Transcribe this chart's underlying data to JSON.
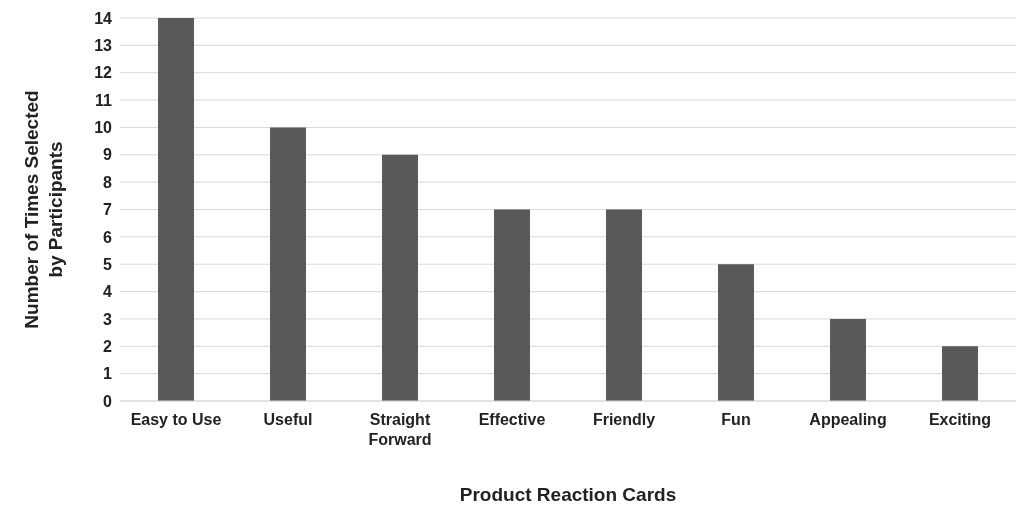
{
  "chart_data": {
    "type": "bar",
    "xlabel": "Product Reaction Cards",
    "ylabel": "Number of Times Selected by Participants",
    "categories": [
      "Easy to Use",
      "Useful",
      "Straight Forward",
      "Effective",
      "Friendly",
      "Fun",
      "Appealing",
      "Exciting"
    ],
    "values": [
      14,
      10,
      9,
      7,
      7,
      5,
      3,
      2
    ],
    "color": "#595959",
    "ylim": [
      0,
      14
    ],
    "yticks": [
      0,
      1,
      2,
      3,
      4,
      5,
      6,
      7,
      8,
      9,
      10,
      11,
      12,
      13,
      14
    ],
    "grid": "y",
    "legend": false
  }
}
